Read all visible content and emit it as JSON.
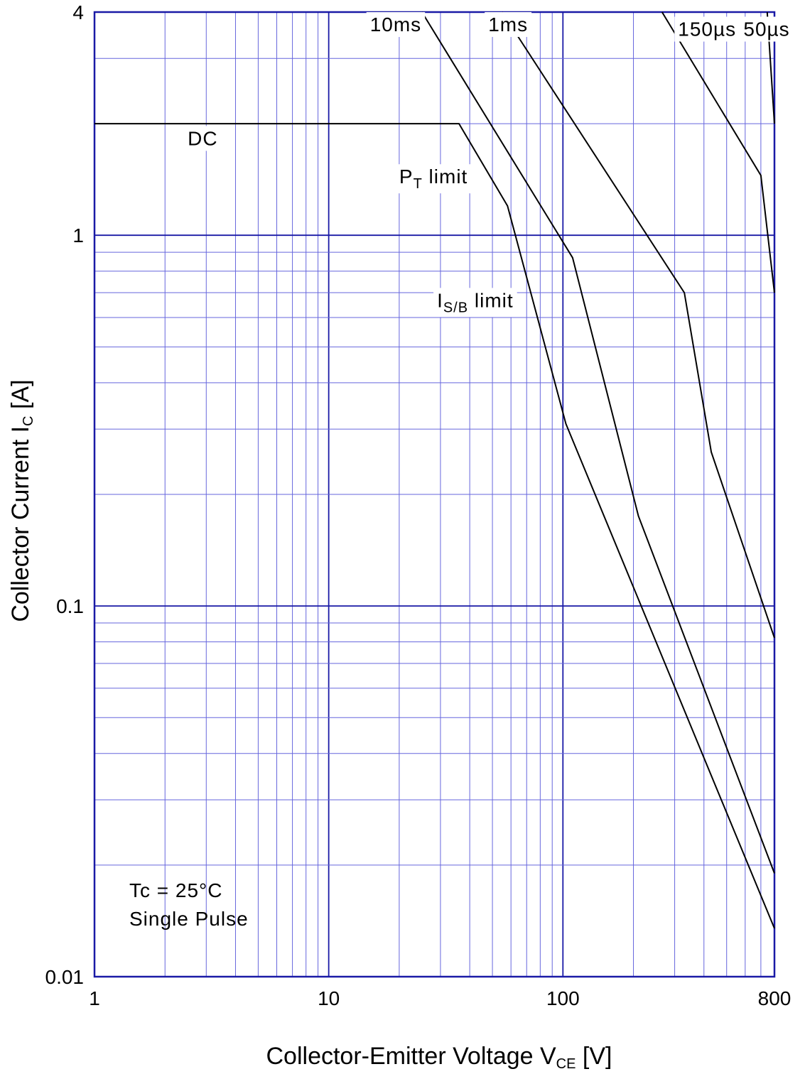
{
  "chart_data": {
    "type": "line",
    "x_scale": "log",
    "y_scale": "log",
    "xlim": [
      1,
      800
    ],
    "ylim": [
      0.01,
      4
    ],
    "grid": true,
    "colors": {
      "grid": "#6666dd",
      "frame": "#1a1aa6",
      "curve": "#000000"
    },
    "xlabel": {
      "main": "Collector-Emitter Voltage  V",
      "sub": "CE",
      "unit": "  [V]"
    },
    "ylabel": {
      "main": "Collector Current  I",
      "sub": "C",
      "unit": "  [A]"
    },
    "x_ticks": [
      {
        "value": 1,
        "label": "1"
      },
      {
        "value": 10,
        "label": "10"
      },
      {
        "value": 100,
        "label": "100"
      },
      {
        "value": 800,
        "label": "800"
      }
    ],
    "y_ticks": [
      {
        "value": 0.01,
        "label": "0.01"
      },
      {
        "value": 0.1,
        "label": "0.1"
      },
      {
        "value": 1,
        "label": "1"
      },
      {
        "value": 4,
        "label": "4"
      }
    ],
    "series": [
      {
        "name": "DC",
        "points": [
          [
            1,
            2.0
          ],
          [
            36,
            2.0
          ],
          [
            58,
            1.2
          ],
          [
            103,
            0.31
          ],
          [
            800,
            0.0135
          ]
        ]
      },
      {
        "name": "10ms",
        "points": [
          [
            25,
            4.0
          ],
          [
            110,
            0.87
          ],
          [
            210,
            0.175
          ],
          [
            800,
            0.019
          ]
        ]
      },
      {
        "name": "1ms",
        "points": [
          [
            55,
            4.0
          ],
          [
            330,
            0.7
          ],
          [
            430,
            0.26
          ],
          [
            800,
            0.082
          ]
        ]
      },
      {
        "name": "150µs",
        "points": [
          [
            265,
            4.0
          ],
          [
            700,
            1.45
          ],
          [
            800,
            0.7
          ]
        ]
      },
      {
        "name": "50µs",
        "points": [
          [
            745,
            4.0
          ],
          [
            800,
            2.0
          ]
        ]
      }
    ],
    "annotations": [
      {
        "id": "label-dc",
        "text": "DC",
        "x": 2.5,
        "y": 1.75
      },
      {
        "id": "label-10ms",
        "text": "10ms",
        "x": 15,
        "y": 3.55
      },
      {
        "id": "label-1ms",
        "text": "1ms",
        "x": 48,
        "y": 3.55
      },
      {
        "id": "label-150us",
        "text": "150µs",
        "x": 310,
        "y": 3.45
      },
      {
        "id": "label-50us",
        "text": "50µs",
        "x": 590,
        "y": 3.45
      }
    ],
    "pt_limit": {
      "main": "P",
      "sub": "T",
      "rest": " limit",
      "x": 20,
      "y": 1.38
    },
    "isb_limit": {
      "main": "I",
      "sub": "S/B",
      "rest": " limit",
      "x": 29,
      "y": 0.64
    },
    "conditions": [
      "Tc = 25°C",
      "Single  Pulse"
    ]
  }
}
